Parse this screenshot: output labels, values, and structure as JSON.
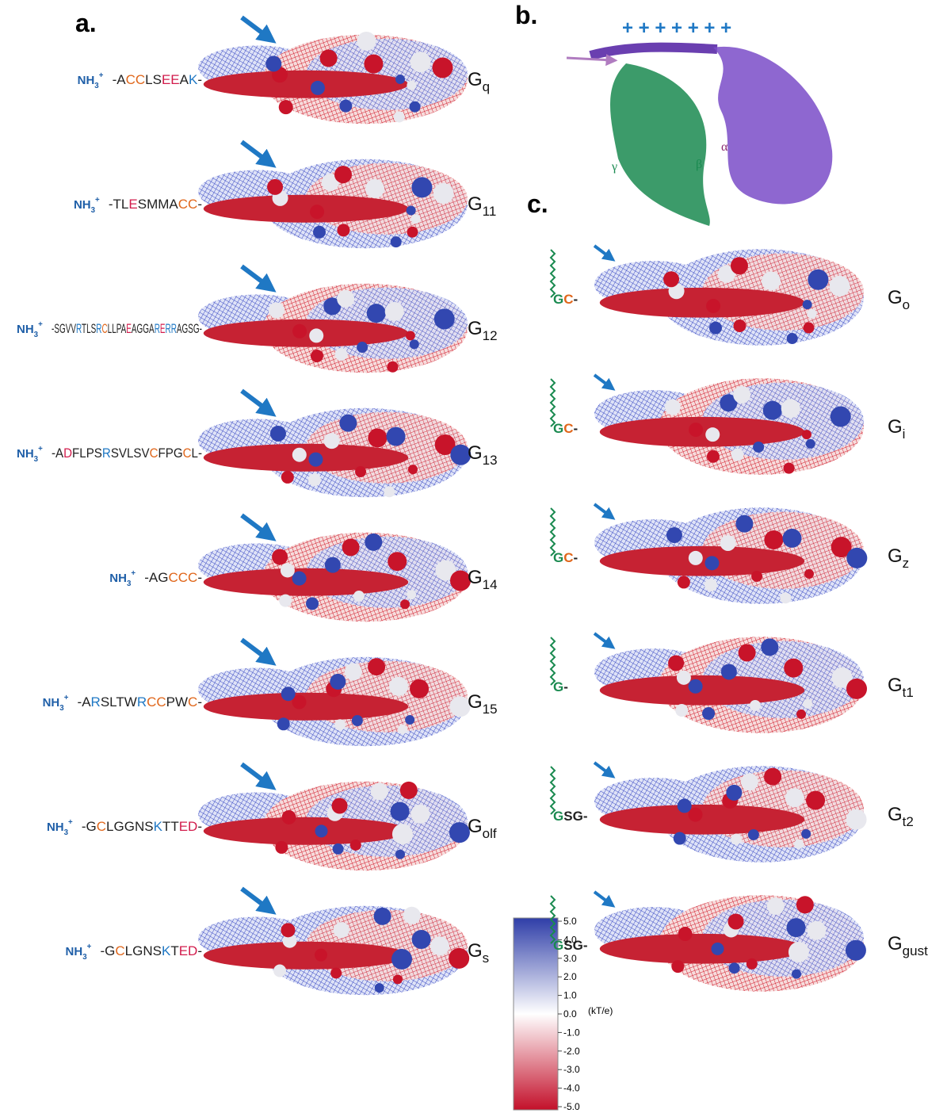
{
  "amine": {
    "base": "NH",
    "sub": "3",
    "sup": "+"
  },
  "panel_a": {
    "label": "a.",
    "rows": [
      {
        "name": "G",
        "sub": "q",
        "sequence": "-ACCLSEEAK-"
      },
      {
        "name": "G",
        "sub": "11",
        "sequence": "-TLESMMACC-"
      },
      {
        "name": "G",
        "sub": "12",
        "sequence": "-SGVVRTLSRCLLPAEAGGARERRAGSG-"
      },
      {
        "name": "G",
        "sub": "13",
        "sequence": "-ADFLPSRSVLSVCFPGCL-"
      },
      {
        "name": "G",
        "sub": "14",
        "sequence": "-AGCCC-"
      },
      {
        "name": "G",
        "sub": "15",
        "sequence": "-ARSLTWRCCPWC-"
      },
      {
        "name": "G",
        "sub": "olf",
        "sequence": "-GCLGGNSKTTED-"
      },
      {
        "name": "G",
        "sub": "s",
        "sequence": "-GCLGNSKTED-"
      }
    ]
  },
  "panel_b": {
    "label": "b.",
    "charges": "+ + + + + + +",
    "alpha": "α",
    "beta": "β",
    "gamma": "γ"
  },
  "panel_c": {
    "label": "c.",
    "rows": [
      {
        "name": "G",
        "sub": "o",
        "sequence": "GC-"
      },
      {
        "name": "G",
        "sub": "i",
        "sequence": "GC-"
      },
      {
        "name": "G",
        "sub": "z",
        "sequence": "GC-"
      },
      {
        "name": "G",
        "sub": "t1",
        "sequence": "G-"
      },
      {
        "name": "G",
        "sub": "t2",
        "sequence": "GSG-"
      },
      {
        "name": "G",
        "sub": "gust",
        "sequence": "GSG-"
      }
    ]
  },
  "colorbar": {
    "unit": "(kT/e)",
    "ticks": [
      {
        "value": 5,
        "label": "5.0"
      },
      {
        "value": 4,
        "label": "4.0"
      },
      {
        "value": 3,
        "label": "3.0"
      },
      {
        "value": 2,
        "label": "2.0"
      },
      {
        "value": 1,
        "label": "1.0"
      },
      {
        "value": 0,
        "label": "0.0"
      },
      {
        "value": -1,
        "label": "-1.0"
      },
      {
        "value": -2,
        "label": "-2.0"
      },
      {
        "value": -3,
        "label": "-3.0"
      },
      {
        "value": -4,
        "label": "-4.0"
      },
      {
        "value": -5,
        "label": "-5.0"
      }
    ]
  }
}
